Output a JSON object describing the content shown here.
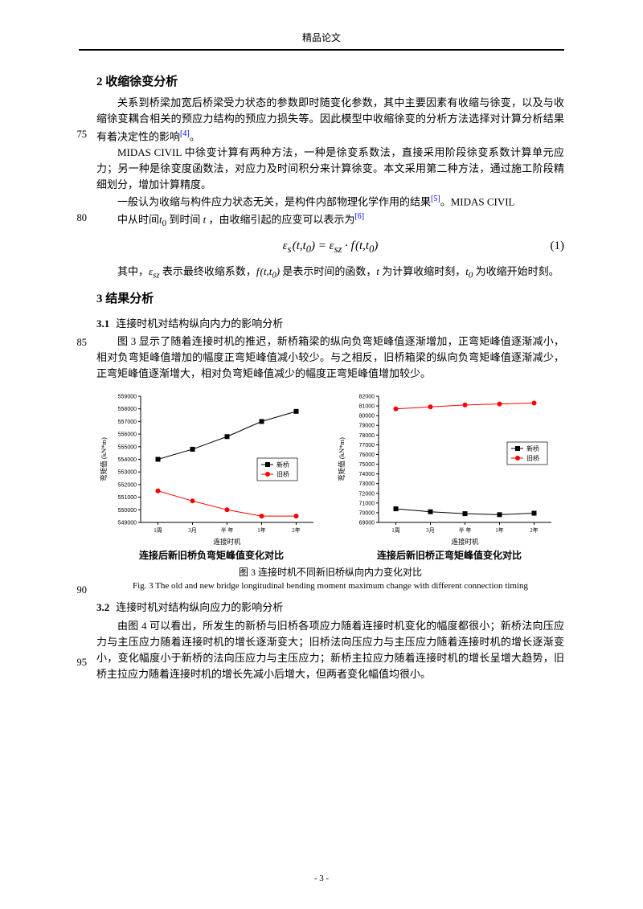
{
  "header": "精品论文",
  "linenos": {
    "a": "75",
    "b": "80",
    "c": "85",
    "d": "90",
    "e": "95"
  },
  "sec2": {
    "heading": "2  收缩徐变分析",
    "p1": "关系到桥梁加宽后桥梁受力状态的参数即时随变化参数，其中主要因素有收缩与徐变，以及与收缩徐变耦合相关的预应力结构的预应力损失等。因此模型中收缩徐变的分析方法选择对计算分析结果有着决定性的影响",
    "p1_cite": "[4]",
    "p1_end": "。",
    "p2": "MIDAS CIVIL 中徐变计算有两种方法，一种是徐变系数法，直接采用阶段徐变系数计算单元应力；另一种是徐变度函数法，对应力及时间积分来计算徐变。本文采用第二种方法，通过施工阶段精细划分，增加计算精度。",
    "p3a": "一般认为收缩与构件应力状态无关，是构件内部物理化学作用的结果",
    "p3_cite": "[5]",
    "p3b": "。MIDAS CIVIL",
    "p4a": "中从时间",
    "p4b": " 到时间 ",
    "p4c": " ，由收缩引起的应变可以表示为",
    "p4_cite": "[6]",
    "eq_num": "(1)",
    "p5a": "其中，",
    "p5b": " 表示最终收缩系数，",
    "p5c": " 是表示时间的函数，",
    "p5d": " 为计算收缩时刻，",
    "p5e": " 为收缩开始时刻。"
  },
  "sec3": {
    "heading": "3  结果分析",
    "h31": {
      "num": "3.1",
      "title": "连接时机对结构纵向内力的影响分析"
    },
    "p31": "图 3 显示了随着连接时机的推迟，新桥箱梁的纵向负弯矩峰值逐渐增加，正弯矩峰值逐渐减小，相对负弯矩峰值增加的幅度正弯矩峰值减小较少。与之相反，旧桥箱梁的纵向负弯矩峰值逐渐减少，正弯矩峰值逐渐增大，相对负弯矩峰值减少的幅度正弯矩峰值增加较少。",
    "h32": {
      "num": "3.2",
      "title": "连接时机对结构纵向应力的影响分析"
    },
    "p32": "由图 4 可以看出，所发生的新桥与旧桥各项应力随着连接时机变化的幅度都很小；新桥法向压应力与主压应力随着连接时机的增长逐渐变大；旧桥法向压应力与主压应力随着连接时机的增长逐渐变小，变化幅度小于新桥的法向压应力与主压应力；新桥主拉应力随着连接时机的增长呈增大趋势，旧桥主拉应力随着连接时机的增长先减小后增大，但两者变化幅值均很小。"
  },
  "fig": {
    "sub_left": "连接后新旧桥负弯矩峰值变化对比",
    "sub_right": "连接后新旧桥正弯矩峰值变化对比",
    "caption_cn": "图 3   连接时机不同新旧桥纵向内力变化对比",
    "caption_en": "Fig. 3   The old and new bridge longitudinal bending moment maximum change with different connection timing",
    "x_label": "连接时机",
    "y_label_left": "弯矩值 (kN*m)",
    "y_label_right": "弯矩值 (kN*m)",
    "x_ticks": [
      "1周",
      "3月",
      "半 年",
      "1年",
      "2年"
    ],
    "legend": {
      "new": "新桥",
      "old": "旧桥"
    },
    "left": {
      "y_ticks": [
        549000,
        550000,
        551000,
        552000,
        553000,
        554000,
        555000,
        556000,
        557000,
        558000,
        559000
      ],
      "ylim": [
        549000,
        559000
      ],
      "series_new": {
        "color": "#000000",
        "marker": "square",
        "values": [
          554000,
          554800,
          555800,
          557000,
          557800
        ]
      },
      "series_old": {
        "color": "#ff0000",
        "marker": "circle",
        "values": [
          551500,
          550700,
          550000,
          549500,
          549500
        ]
      }
    },
    "right": {
      "y_ticks": [
        69000,
        70000,
        71000,
        72000,
        73000,
        74000,
        75000,
        76000,
        77000,
        78000,
        79000,
        80000,
        81000,
        82000
      ],
      "ylim": [
        69000,
        82000
      ],
      "series_new": {
        "color": "#000000",
        "marker": "square",
        "values": [
          70400,
          70100,
          69900,
          69800,
          69950
        ]
      },
      "series_old": {
        "color": "#ff0000",
        "marker": "circle",
        "values": [
          80700,
          80900,
          81100,
          81200,
          81300
        ]
      }
    },
    "style": {
      "bg": "#ffffff",
      "axis_color": "#000000",
      "tick_fontsize": 7,
      "legend_box_stroke": "#000000",
      "line_width": 1.0,
      "marker_size": 3
    }
  },
  "footer": "- 3 -"
}
